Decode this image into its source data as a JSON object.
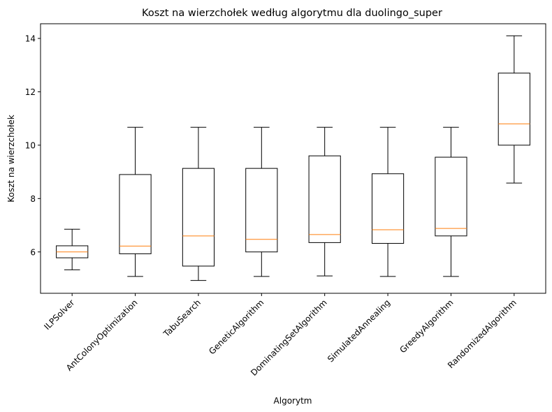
{
  "chart_data": {
    "type": "boxplot",
    "title": "Koszt na wierzchołek według algorytmu dla duolingo_super",
    "xlabel": "Algorytm",
    "ylabel": "Koszt na wierzchołek",
    "ylim": [
      4.45,
      14.55
    ],
    "yticks": [
      6,
      8,
      10,
      12,
      14
    ],
    "grid": false,
    "colors": {
      "box": "#000000",
      "median": "#ff7f0e",
      "background": "#ffffff"
    },
    "categories": [
      "ILPSolver",
      "AntColonyOptimization",
      "TabuSearch",
      "GeneticAlgorithm",
      "DominatingSetAlgorithm",
      "SimulatedAnnealing",
      "GreedyAlgorithm",
      "RandomizedAlgorithm"
    ],
    "boxes": [
      {
        "whislo": 5.33,
        "q1": 5.78,
        "med": 6.0,
        "q3": 6.23,
        "whishi": 6.85
      },
      {
        "whislo": 5.08,
        "q1": 5.93,
        "med": 6.22,
        "q3": 8.9,
        "whishi": 10.67
      },
      {
        "whislo": 4.93,
        "q1": 5.47,
        "med": 6.6,
        "q3": 9.13,
        "whishi": 10.67
      },
      {
        "whislo": 5.08,
        "q1": 6.0,
        "med": 6.47,
        "q3": 9.13,
        "whishi": 10.67
      },
      {
        "whislo": 5.1,
        "q1": 6.35,
        "med": 6.65,
        "q3": 9.6,
        "whishi": 10.67
      },
      {
        "whislo": 5.08,
        "q1": 6.32,
        "med": 6.83,
        "q3": 8.93,
        "whishi": 10.67
      },
      {
        "whislo": 5.08,
        "q1": 6.6,
        "med": 6.88,
        "q3": 9.55,
        "whishi": 10.67
      },
      {
        "whislo": 8.58,
        "q1": 10.0,
        "med": 10.8,
        "q3": 12.7,
        "whishi": 14.1
      }
    ]
  }
}
